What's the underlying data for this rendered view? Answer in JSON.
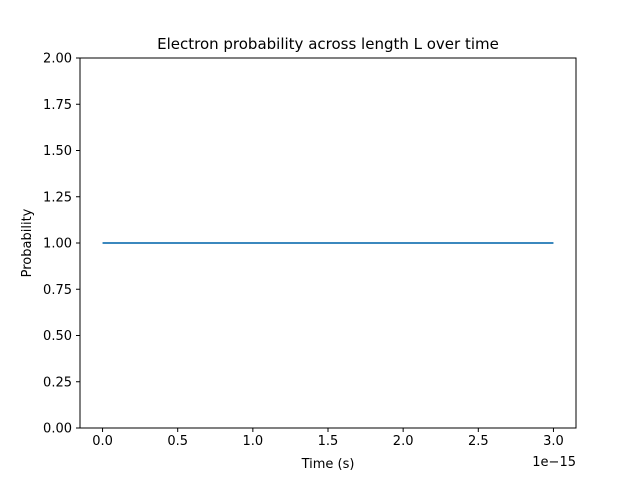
{
  "chart_data": {
    "type": "line",
    "title": "Electron probability across length L over time",
    "xlabel": "Time (s)",
    "ylabel": "Probability",
    "x_offset_label": "1e−15",
    "xlim": [
      -0.15,
      3.15
    ],
    "ylim": [
      0.0,
      2.0
    ],
    "x_ticks": [
      0.0,
      0.5,
      1.0,
      1.5,
      2.0,
      2.5,
      3.0
    ],
    "x_tick_labels": [
      "0.0",
      "0.5",
      "1.0",
      "1.5",
      "2.0",
      "2.5",
      "3.0"
    ],
    "y_ticks": [
      0.0,
      0.25,
      0.5,
      0.75,
      1.0,
      1.25,
      1.5,
      1.75,
      2.0
    ],
    "y_tick_labels": [
      "0.00",
      "0.25",
      "0.50",
      "0.75",
      "1.00",
      "1.25",
      "1.50",
      "1.75",
      "2.00"
    ],
    "grid": false,
    "legend": "none",
    "series": [
      {
        "color": "#1f77b4",
        "x": [
          0.0,
          0.5,
          1.0,
          1.5,
          2.0,
          2.5,
          3.0
        ],
        "y": [
          1.0,
          1.0,
          1.0,
          1.0,
          1.0,
          1.0,
          1.0
        ]
      }
    ]
  }
}
